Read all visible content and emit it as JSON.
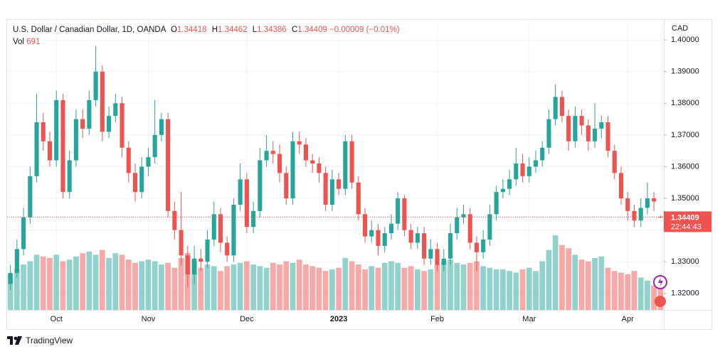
{
  "chart_data": {
    "type": "candlestick",
    "title": "U.S. Dollar / Canadian Dollar, 1D, OANDA",
    "ohlc_labels": [
      "O",
      "H",
      "L",
      "C"
    ],
    "change": "−0.00009",
    "change_pct": "(−0.01%)",
    "volume_label": "Vol",
    "currency": "CAD",
    "countdown": "22:44:43",
    "brand": "TradingView",
    "up_color": "#26a69a",
    "down_color": "#ef5350",
    "grid": true,
    "ylim": [
      1.3148,
      1.4063
    ],
    "yticks": [
      {
        "value": 1.32,
        "label": "1.32000"
      },
      {
        "value": 1.33,
        "label": "1.33000"
      },
      {
        "value": 1.34,
        "label": "1.34000"
      },
      {
        "value": 1.35,
        "label": "1.35000"
      },
      {
        "value": 1.36,
        "label": "1.36000"
      },
      {
        "value": 1.37,
        "label": "1.37000"
      },
      {
        "value": 1.38,
        "label": "1.38000"
      },
      {
        "value": 1.39,
        "label": "1.39000"
      },
      {
        "value": 1.4,
        "label": "1.40000"
      }
    ],
    "categories": [
      null,
      null,
      null,
      null,
      null,
      null,
      null,
      "Oct",
      null,
      null,
      null,
      null,
      null,
      null,
      null,
      null,
      null,
      null,
      null,
      null,
      null,
      "Nov",
      null,
      null,
      null,
      null,
      null,
      null,
      null,
      null,
      null,
      null,
      null,
      null,
      null,
      null,
      "Dec",
      null,
      null,
      null,
      null,
      null,
      null,
      null,
      null,
      null,
      null,
      null,
      null,
      null,
      "2023",
      null,
      null,
      null,
      null,
      null,
      null,
      null,
      null,
      null,
      null,
      null,
      null,
      null,
      null,
      "Feb",
      null,
      null,
      null,
      null,
      null,
      null,
      null,
      null,
      null,
      null,
      null,
      null,
      null,
      "Mar",
      null,
      null,
      null,
      null,
      null,
      null,
      null,
      null,
      null,
      null,
      null,
      null,
      null,
      null,
      "Apr",
      null,
      null,
      null,
      null,
      null
    ],
    "open": [
      1.323,
      1.3265,
      1.334,
      1.344,
      1.357,
      1.374,
      1.368,
      1.362,
      1.381,
      1.352,
      1.362,
      1.375,
      1.372,
      1.381,
      1.39,
      1.371,
      1.376,
      1.38,
      1.366,
      1.358,
      1.352,
      1.36,
      1.363,
      1.37,
      1.375,
      1.346,
      1.34,
      1.332,
      1.326,
      1.331,
      1.33,
      1.337,
      1.345,
      1.336,
      1.332,
      1.348,
      1.356,
      1.341,
      1.346,
      1.362,
      1.365,
      1.364,
      1.358,
      1.35,
      1.368,
      1.367,
      1.362,
      1.361,
      1.358,
      1.348,
      1.356,
      1.353,
      1.368,
      1.355,
      1.345,
      1.338,
      1.34,
      1.335,
      1.339,
      1.342,
      1.35,
      1.34,
      1.336,
      1.339,
      1.331,
      1.334,
      1.329,
      1.331,
      1.339,
      1.344,
      1.345,
      1.336,
      1.333,
      1.337,
      1.345,
      1.352,
      1.353,
      1.356,
      1.361,
      1.357,
      1.36,
      1.362,
      1.366,
      1.375,
      1.382,
      1.376,
      1.368,
      1.376,
      1.373,
      1.368,
      1.372,
      1.374,
      1.365,
      1.358,
      1.35,
      1.346,
      1.343,
      1.347,
      1.35,
      1.34418
    ],
    "high": [
      1.329,
      1.337,
      1.347,
      1.36,
      1.383,
      1.377,
      1.371,
      1.384,
      1.383,
      1.365,
      1.378,
      1.378,
      1.384,
      1.398,
      1.392,
      1.379,
      1.383,
      1.382,
      1.368,
      1.361,
      1.363,
      1.366,
      1.381,
      1.377,
      1.377,
      1.349,
      1.352,
      1.335,
      1.335,
      1.334,
      1.34,
      1.349,
      1.347,
      1.338,
      1.35,
      1.361,
      1.358,
      1.349,
      1.366,
      1.37,
      1.368,
      1.367,
      1.36,
      1.371,
      1.371,
      1.369,
      1.364,
      1.363,
      1.36,
      1.359,
      1.358,
      1.37,
      1.37,
      1.357,
      1.347,
      1.343,
      1.342,
      1.341,
      1.345,
      1.352,
      1.351,
      1.342,
      1.341,
      1.341,
      1.337,
      1.336,
      1.334,
      1.342,
      1.347,
      1.348,
      1.347,
      1.338,
      1.34,
      1.348,
      1.354,
      1.356,
      1.359,
      1.366,
      1.364,
      1.363,
      1.365,
      1.368,
      1.378,
      1.386,
      1.384,
      1.378,
      1.379,
      1.378,
      1.375,
      1.38,
      1.376,
      1.376,
      1.367,
      1.36,
      1.352,
      1.348,
      1.35,
      1.355,
      1.352,
      1.34462
    ],
    "low": [
      1.321,
      1.325,
      1.332,
      1.342,
      1.355,
      1.365,
      1.36,
      1.36,
      1.35,
      1.35,
      1.36,
      1.369,
      1.37,
      1.379,
      1.368,
      1.369,
      1.374,
      1.363,
      1.355,
      1.349,
      1.35,
      1.357,
      1.361,
      1.368,
      1.344,
      1.337,
      1.329,
      1.322,
      1.323,
      1.327,
      1.328,
      1.335,
      1.333,
      1.33,
      1.33,
      1.346,
      1.339,
      1.339,
      1.344,
      1.36,
      1.361,
      1.355,
      1.348,
      1.348,
      1.364,
      1.36,
      1.358,
      1.355,
      1.346,
      1.346,
      1.351,
      1.351,
      1.353,
      1.343,
      1.336,
      1.336,
      1.332,
      1.333,
      1.337,
      1.34,
      1.338,
      1.334,
      1.334,
      1.329,
      1.329,
      1.327,
      1.327,
      1.329,
      1.337,
      1.342,
      1.334,
      1.327,
      1.331,
      1.335,
      1.343,
      1.35,
      1.351,
      1.354,
      1.355,
      1.355,
      1.358,
      1.36,
      1.364,
      1.373,
      1.374,
      1.365,
      1.366,
      1.37,
      1.365,
      1.366,
      1.369,
      1.363,
      1.356,
      1.348,
      1.343,
      1.341,
      1.341,
      1.345,
      1.346,
      1.34386
    ],
    "close": [
      1.3265,
      1.334,
      1.344,
      1.357,
      1.374,
      1.368,
      1.362,
      1.381,
      1.352,
      1.362,
      1.375,
      1.372,
      1.381,
      1.39,
      1.371,
      1.376,
      1.38,
      1.366,
      1.358,
      1.352,
      1.36,
      1.363,
      1.37,
      1.375,
      1.346,
      1.34,
      1.332,
      1.326,
      1.331,
      1.33,
      1.337,
      1.345,
      1.336,
      1.332,
      1.348,
      1.356,
      1.341,
      1.346,
      1.362,
      1.365,
      1.364,
      1.358,
      1.35,
      1.368,
      1.367,
      1.362,
      1.361,
      1.358,
      1.348,
      1.356,
      1.353,
      1.368,
      1.355,
      1.345,
      1.338,
      1.34,
      1.335,
      1.339,
      1.342,
      1.35,
      1.34,
      1.336,
      1.339,
      1.331,
      1.334,
      1.329,
      1.331,
      1.339,
      1.344,
      1.345,
      1.336,
      1.333,
      1.337,
      1.345,
      1.352,
      1.353,
      1.356,
      1.361,
      1.357,
      1.36,
      1.362,
      1.366,
      1.375,
      1.382,
      1.376,
      1.368,
      1.376,
      1.373,
      1.368,
      1.372,
      1.374,
      1.365,
      1.358,
      1.35,
      1.346,
      1.343,
      1.347,
      1.35,
      1.349,
      1.34409
    ],
    "volume": [
      1100,
      1250,
      1400,
      1500,
      1700,
      1650,
      1600,
      1700,
      1500,
      1550,
      1650,
      1750,
      1800,
      1700,
      1850,
      1600,
      1750,
      1700,
      1550,
      1450,
      1500,
      1550,
      1500,
      1400,
      1450,
      1300,
      1600,
      1750,
      1550,
      1300,
      1400,
      1350,
      1200,
      1350,
      1400,
      1450,
      1500,
      1400,
      1350,
      1300,
      1450,
      1400,
      1500,
      1450,
      1550,
      1400,
      1350,
      1300,
      1200,
      1250,
      1300,
      1600,
      1500,
      1400,
      1250,
      1350,
      1300,
      1450,
      1500,
      1450,
      1300,
      1350,
      1250,
      1200,
      1250,
      1400,
      1500,
      1550,
      1450,
      1400,
      1450,
      1500,
      1350,
      1300,
      1250,
      1250,
      1200,
      1150,
      1250,
      1300,
      1200,
      1500,
      1850,
      2300,
      2000,
      1900,
      1700,
      1550,
      1500,
      1600,
      1650,
      1300,
      1200,
      1150,
      1100,
      1200,
      1000,
      900,
      750,
      691
    ]
  }
}
